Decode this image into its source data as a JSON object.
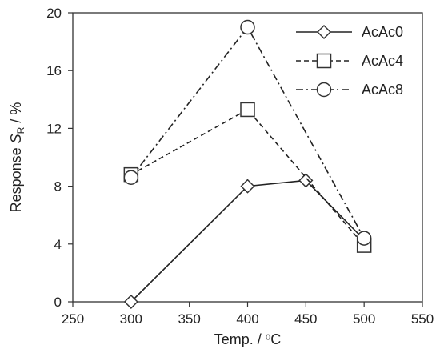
{
  "chart_data": {
    "type": "line",
    "xlabel": "Temp. / ºC",
    "ylabel": {
      "prefix": "Response ",
      "symbol": "S",
      "subscript": "R",
      "suffix": " / %"
    },
    "xlim": [
      250,
      550
    ],
    "ylim": [
      0,
      20
    ],
    "xticks": [
      "250",
      "300",
      "350",
      "400",
      "450",
      "500",
      "550"
    ],
    "yticks": [
      "0",
      "4",
      "8",
      "12",
      "16",
      "20"
    ],
    "grid": false,
    "legend_position": "top-right",
    "series": [
      {
        "name": "AcAc0",
        "marker": "diamond",
        "dash": "solid",
        "x": [
          300,
          400,
          450,
          500
        ],
        "y": [
          0,
          8.0,
          8.4,
          4.3
        ]
      },
      {
        "name": "AcAc4",
        "marker": "square",
        "dash": "dashed",
        "x": [
          300,
          400,
          500
        ],
        "y": [
          8.8,
          13.3,
          3.9
        ]
      },
      {
        "name": "AcAc8",
        "marker": "circle",
        "dash": "dashdot",
        "x": [
          300,
          400,
          500
        ],
        "y": [
          8.6,
          19.0,
          4.4
        ]
      }
    ]
  }
}
